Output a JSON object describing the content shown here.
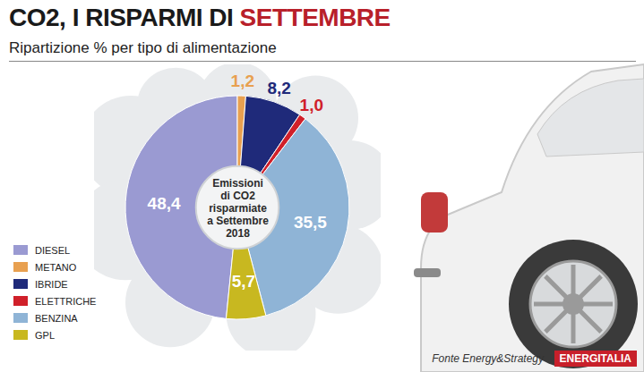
{
  "chart_data": {
    "type": "pie",
    "title": "CO2, I RISPARMI DI SETTEMBRE",
    "subtitle": "Ripartizione % per tipo di alimentazione",
    "center_text": "Emissioni\ndi CO2\nrisparmiate\na Settembre\n2018",
    "categories": [
      "DIESEL",
      "METANO",
      "IBRIDE",
      "ELETTRICHE",
      "BENZINA",
      "GPL"
    ],
    "values": [
      48.4,
      1.2,
      8.2,
      1.0,
      35.5,
      5.7
    ],
    "value_labels": [
      "48,4",
      "1,2",
      "8,2",
      "1,0",
      "35,5",
      "5,7"
    ],
    "colors": [
      "#9a9ad2",
      "#e8a050",
      "#1f2a7a",
      "#d0202a",
      "#8fb4d6",
      "#c8b820"
    ],
    "data_labels": true,
    "legend": "bottom-left",
    "source": "Fonte Energy&Strategy",
    "logo": "ENERGITALIA"
  }
}
